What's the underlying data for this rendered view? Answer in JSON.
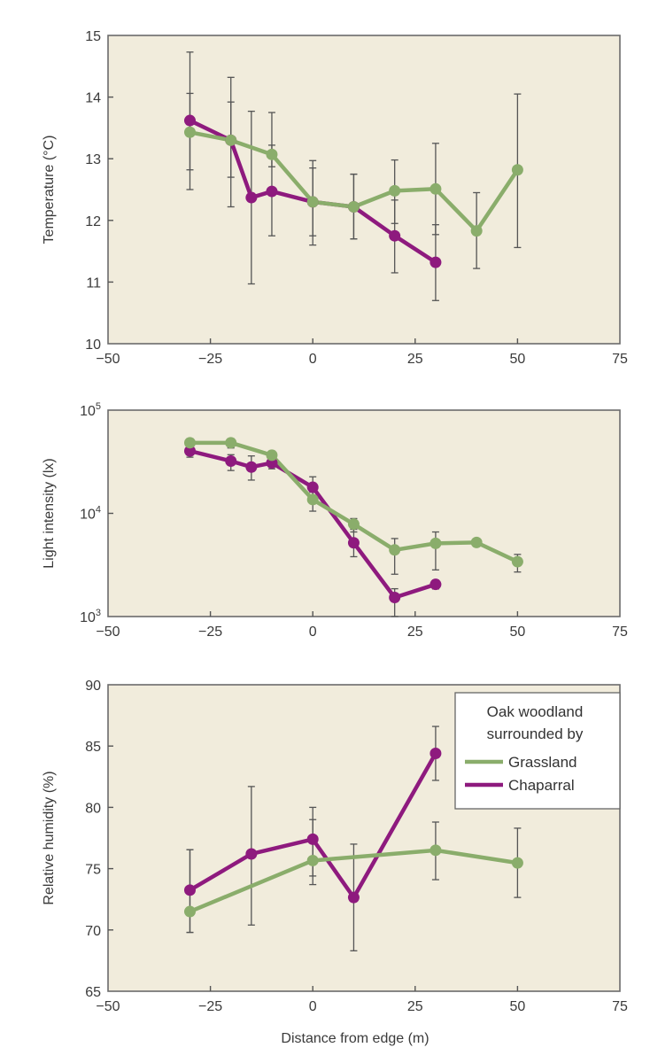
{
  "chart_data": [
    {
      "type": "line",
      "ylabel": "Temperature (°C)",
      "xlim": [
        -50,
        75
      ],
      "ylim": [
        10,
        15
      ],
      "xticks": [
        "−50",
        "−25",
        "0",
        "25",
        "50",
        "75"
      ],
      "yticks": [
        "10",
        "11",
        "12",
        "13",
        "14",
        "15"
      ],
      "xtick_values": [
        -50,
        -25,
        0,
        25,
        50,
        75
      ],
      "ytick_values": [
        10,
        11,
        12,
        13,
        14,
        15
      ],
      "yscale": "linear",
      "series": [
        {
          "key": "grassland",
          "color": "#8aad6b",
          "x": [
            -30,
            -20,
            -10,
            0,
            10,
            20,
            30,
            40,
            50
          ],
          "y": [
            13.43,
            13.3,
            13.07,
            12.3,
            12.22,
            12.48,
            12.51,
            11.83,
            12.82
          ],
          "err": [
            [
              12.82,
              14.06
            ],
            [
              12.7,
              13.92
            ],
            [
              12.87,
              13.22
            ],
            [
              11.75,
              12.85
            ],
            [
              11.7,
              12.75
            ],
            [
              11.95,
              12.98
            ],
            [
              11.77,
              13.25
            ],
            [
              11.22,
              12.45
            ],
            [
              11.56,
              14.05
            ]
          ]
        },
        {
          "key": "chaparral",
          "color": "#8e1a7e",
          "x": [
            -30,
            -20,
            -15,
            -10,
            0,
            10,
            20,
            30
          ],
          "y": [
            13.62,
            13.3,
            12.37,
            12.47,
            12.3,
            12.22,
            11.75,
            11.32
          ],
          "err": [
            [
              12.5,
              14.73
            ],
            [
              12.22,
              14.32
            ],
            [
              10.97,
              13.77
            ],
            [
              11.75,
              13.75
            ],
            [
              11.6,
              12.97
            ],
            [
              11.7,
              12.75
            ],
            [
              11.15,
              12.33
            ],
            [
              10.7,
              11.93
            ]
          ]
        }
      ]
    },
    {
      "type": "line",
      "ylabel": "Light intensity (lx)",
      "xlim": [
        -50,
        75
      ],
      "ylim": [
        1000,
        100000
      ],
      "yscale": "log",
      "xticks": [
        "−50",
        "−25",
        "0",
        "25",
        "50",
        "75"
      ],
      "yticks": [
        "10|3",
        "10|4",
        "10|5"
      ],
      "xtick_values": [
        -50,
        -25,
        0,
        25,
        50,
        75
      ],
      "ytick_values": [
        1000,
        10000,
        100000
      ],
      "series": [
        {
          "key": "grassland",
          "color": "#8aad6b",
          "x": [
            -30,
            -20,
            -10,
            0,
            10,
            20,
            30,
            40,
            50
          ],
          "y": [
            48300,
            48300,
            36600,
            13600,
            7860,
            4420,
            5120,
            5220,
            3400
          ],
          "err": [
            [
              43000,
              53000
            ],
            [
              43000,
              53000
            ],
            [
              32000,
              40000
            ],
            [
              10500,
              16000
            ],
            [
              6600,
              8900
            ],
            [
              2570,
              5700
            ],
            [
              2830,
              6600
            ],
            [
              4800,
              5600
            ],
            [
              2700,
              4000
            ]
          ]
        },
        {
          "key": "chaparral",
          "color": "#8e1a7e",
          "x": [
            -30,
            -20,
            -15,
            -10,
            0,
            10,
            20,
            30
          ],
          "y": [
            40200,
            32100,
            28100,
            30800,
            17900,
            5180,
            1530,
            2050
          ],
          "err": [
            [
              35000,
              44000
            ],
            [
              26000,
              37000
            ],
            [
              21000,
              36000
            ],
            [
              27000,
              35000
            ],
            [
              14000,
              22600
            ],
            [
              3800,
              7000
            ],
            [
              1000,
              1860
            ],
            [
              1850,
              2250
            ]
          ]
        }
      ]
    },
    {
      "type": "line",
      "ylabel": "Relative humidity (%)",
      "xlabel": "Distance from edge (m)",
      "xlim": [
        -50,
        75
      ],
      "ylim": [
        65,
        90
      ],
      "yscale": "linear",
      "xticks": [
        "−50",
        "−25",
        "0",
        "25",
        "50",
        "75"
      ],
      "yticks": [
        "65",
        "70",
        "75",
        "80",
        "85",
        "90"
      ],
      "xtick_values": [
        -50,
        -25,
        0,
        25,
        50,
        75
      ],
      "ytick_values": [
        65,
        70,
        75,
        80,
        85,
        90
      ],
      "legend": {
        "title_line1": "Oak woodland",
        "title_line2": "surrounded by",
        "placement": "top-right",
        "entries": [
          "Grassland",
          "Chaparral"
        ]
      },
      "series": [
        {
          "key": "grassland",
          "name": "Grassland",
          "color": "#8aad6b",
          "x": [
            -30,
            0,
            30,
            50
          ],
          "y": [
            71.5,
            75.66,
            76.5,
            75.47
          ],
          "err": [
            [
              69.8,
              76.55
            ],
            [
              74.4,
              79.0
            ],
            [
              74.1,
              78.8
            ],
            [
              72.65,
              78.3
            ]
          ]
        },
        {
          "key": "chaparral",
          "name": "Chaparral",
          "color": "#8e1a7e",
          "x": [
            -30,
            -15,
            0,
            10,
            30
          ],
          "y": [
            73.25,
            76.2,
            77.4,
            72.65,
            84.4
          ],
          "err": [
            [
              69.8,
              76.55
            ],
            [
              70.4,
              81.7
            ],
            [
              73.7,
              80.0
            ],
            [
              68.3,
              77.0
            ],
            [
              82.2,
              86.6
            ]
          ]
        }
      ]
    }
  ]
}
